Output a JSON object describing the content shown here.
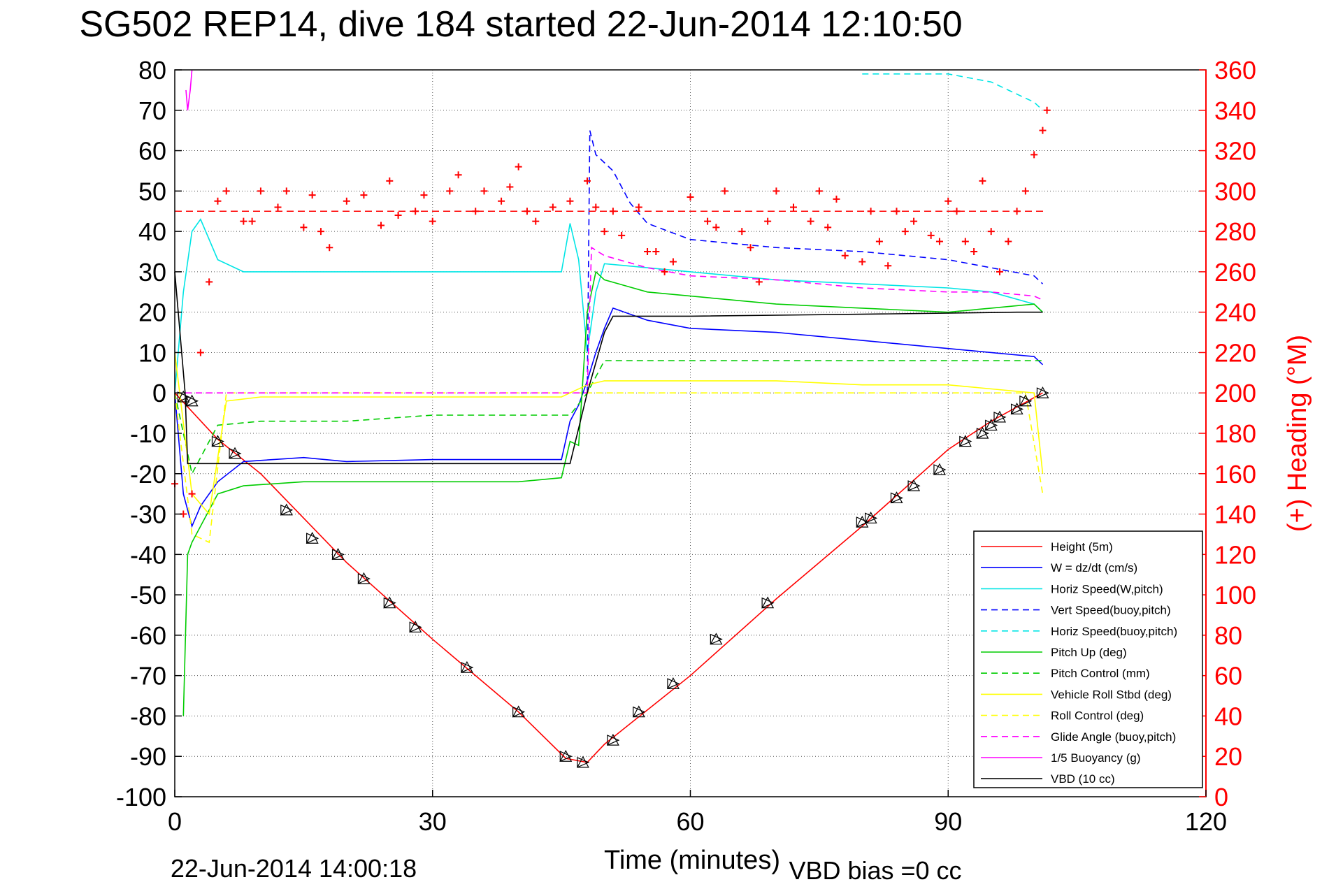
{
  "chart_data": {
    "type": "line",
    "title": "SG502 REP14, dive 184 started 22-Jun-2014 12:10:50",
    "xlabel": "Time (minutes)",
    "ylabel_right": "(+) Heading (°M)",
    "footer_left": "22-Jun-2014 14:00:18",
    "footer_right": "VBD bias =0 cc",
    "xlim": [
      0,
      120
    ],
    "ylim_left": [
      -100,
      80
    ],
    "ylim_right": [
      0,
      360
    ],
    "xticks": [
      0,
      30,
      60,
      90,
      120
    ],
    "yticks_left": [
      80,
      70,
      60,
      50,
      40,
      30,
      20,
      10,
      0,
      -10,
      -20,
      -30,
      -40,
      -50,
      -60,
      -70,
      -80,
      -90,
      -100
    ],
    "yticks_right": [
      360,
      340,
      320,
      300,
      280,
      260,
      240,
      220,
      200,
      180,
      160,
      140,
      120,
      100,
      80,
      60,
      40,
      20,
      0
    ],
    "grid": true,
    "legend_position": "bottom-right",
    "colors": {
      "heading": "#ff0000",
      "right_axis": "#ff0000"
    },
    "series": [
      {
        "name": "Height (5m)",
        "color": "#ff0000",
        "dash": "solid",
        "axis": "left",
        "x": [
          0,
          5,
          10,
          20,
          30,
          40,
          45.5,
          48,
          50,
          60,
          70,
          80,
          90,
          95,
          101
        ],
        "y": [
          0,
          -11.5,
          -20,
          -42,
          -61,
          -79,
          -90.5,
          -91.5,
          -87,
          -70,
          -51,
          -33,
          -14,
          -7,
          0
        ]
      },
      {
        "name": "W = dz/dt (cm/s)",
        "color": "#0000ff",
        "dash": "solid",
        "axis": "left",
        "x": [
          0,
          1,
          2,
          3,
          5,
          8,
          15,
          20,
          30,
          40,
          45,
          46,
          47,
          48,
          49,
          50,
          51,
          55,
          60,
          70,
          80,
          90,
          95,
          100,
          101
        ],
        "y": [
          0,
          -25,
          -33,
          -28,
          -22,
          -17,
          -16,
          -17,
          -16.5,
          -16.5,
          -16.5,
          -7,
          -3,
          3,
          10,
          16,
          21,
          18,
          16,
          15,
          13,
          11,
          10,
          9,
          7
        ]
      },
      {
        "name": "Horiz Speed(W,pitch)",
        "color": "#00e5e5",
        "dash": "solid",
        "axis": "left",
        "x": [
          0,
          1,
          2,
          3,
          5,
          8,
          15,
          20,
          30,
          40,
          45,
          46,
          47,
          48,
          49,
          50,
          55,
          60,
          70,
          80,
          90,
          95,
          100,
          101
        ],
        "y": [
          0,
          25,
          40,
          43,
          33,
          30,
          30,
          30,
          30,
          30,
          30,
          42,
          33,
          10,
          25,
          32,
          31,
          30,
          28,
          27,
          26,
          25,
          22,
          20
        ]
      },
      {
        "name": "Vert Speed(buoy,pitch)",
        "color": "#0000ff",
        "dash": "dashed",
        "axis": "left",
        "x": [
          48,
          48.3,
          49,
          51,
          53,
          55,
          60,
          70,
          80,
          85,
          90,
          95,
          100,
          101
        ],
        "y": [
          0,
          65,
          59,
          55,
          47,
          42,
          38,
          36,
          35,
          34,
          33,
          31,
          29,
          27
        ]
      },
      {
        "name": "Horiz Speed(buoy,pitch)",
        "color": "#00e5e5",
        "dash": "dashed",
        "axis": "left",
        "x": [
          80,
          85,
          90,
          95,
          98,
          100,
          101
        ],
        "y": [
          79,
          79,
          79,
          77,
          74,
          72,
          70
        ]
      },
      {
        "name": "Pitch Up (deg)",
        "color": "#00cc00",
        "dash": "solid",
        "axis": "left",
        "x": [
          1,
          1.5,
          2,
          3,
          5,
          8,
          15,
          20,
          30,
          40,
          45,
          46,
          47,
          48,
          49,
          50,
          55,
          60,
          70,
          80,
          90,
          95,
          100,
          101
        ],
        "y": [
          -80,
          -40,
          -37,
          -33,
          -25,
          -23,
          -22,
          -22,
          -22,
          -22,
          -21,
          -12,
          -13,
          20,
          30,
          28,
          25,
          24,
          22,
          21,
          20,
          21,
          22,
          20
        ]
      },
      {
        "name": "Pitch Control (mm)",
        "color": "#00cc00",
        "dash": "dashed",
        "axis": "left",
        "x": [
          0,
          2,
          5,
          10,
          20,
          30,
          46,
          48,
          50,
          60,
          70,
          80,
          90,
          101
        ],
        "y": [
          0,
          -20,
          -8,
          -7,
          -7,
          -5.5,
          -5.5,
          0,
          8,
          8,
          8,
          8,
          8,
          8
        ]
      },
      {
        "name": "Vehicle Roll Stbd (deg)",
        "color": "#ffff00",
        "dash": "solid",
        "axis": "left",
        "x": [
          0,
          2,
          4,
          6,
          10,
          20,
          30,
          45,
          48,
          50,
          60,
          70,
          80,
          90,
          100,
          101
        ],
        "y": [
          10,
          -25,
          -30,
          -2,
          -1,
          -1,
          -1,
          -1,
          2,
          3,
          3,
          3,
          2,
          2,
          0,
          -20
        ]
      },
      {
        "name": "Roll Control (deg)",
        "color": "#ffff00",
        "dash": "dashed",
        "axis": "left",
        "x": [
          0,
          2,
          4,
          6,
          10,
          20,
          30,
          46,
          48,
          50,
          60,
          70,
          80,
          90,
          99,
          101
        ],
        "y": [
          0,
          -35,
          -37,
          0,
          0,
          0,
          0,
          0,
          0,
          0,
          0,
          0,
          0,
          0,
          0,
          -25
        ]
      },
      {
        "name": "Glide Angle (buoy,pitch)",
        "color": "#ff00ff",
        "dash": "dashed",
        "axis": "left",
        "x": [
          0,
          48,
          48.5,
          50,
          55,
          60,
          70,
          80,
          90,
          95,
          100,
          101
        ],
        "y": [
          0,
          0,
          36,
          34,
          31,
          29,
          28,
          26,
          25,
          25,
          24,
          23
        ]
      },
      {
        "name": "1/5 Buoyancy (g)",
        "color": "#ff00ff",
        "dash": "solid",
        "axis": "left",
        "x": [
          1.3,
          1.5,
          1.8,
          2
        ],
        "y": [
          75,
          70,
          75,
          80
        ]
      },
      {
        "name": "VBD (10 cc)",
        "color": "#000000",
        "dash": "solid",
        "axis": "left",
        "x": [
          0,
          1.2,
          1.5,
          46,
          48,
          50,
          51,
          60,
          80,
          98,
          101
        ],
        "y": [
          30,
          0,
          -17.5,
          -17.5,
          0,
          15,
          19,
          19,
          19.5,
          20,
          20
        ]
      }
    ],
    "heading": {
      "name": "(+) Heading",
      "marker": "+",
      "color": "#ff0000",
      "axis": "right",
      "reference": 290,
      "x": [
        0,
        1,
        2,
        3,
        4,
        5,
        6,
        8,
        9,
        10,
        12,
        13,
        15,
        16,
        17,
        18,
        20,
        22,
        24,
        25,
        26,
        28,
        29,
        30,
        32,
        33,
        35,
        36,
        38,
        39,
        40,
        41,
        42,
        44,
        46,
        48,
        49,
        50,
        51,
        52,
        54,
        55,
        56,
        57,
        58,
        60,
        62,
        63,
        64,
        66,
        67,
        68,
        69,
        70,
        72,
        74,
        75,
        76,
        77,
        78,
        80,
        81,
        82,
        83,
        84,
        85,
        86,
        88,
        89,
        90,
        91,
        92,
        93,
        94,
        95,
        96,
        97,
        98,
        99,
        100,
        101,
        101.5
      ],
      "y": [
        155,
        140,
        150,
        220,
        255,
        295,
        300,
        285,
        285,
        300,
        292,
        300,
        282,
        298,
        280,
        272,
        295,
        298,
        283,
        305,
        288,
        290,
        298,
        285,
        300,
        308,
        290,
        300,
        295,
        302,
        312,
        290,
        285,
        292,
        295,
        305,
        292,
        280,
        290,
        278,
        292,
        270,
        270,
        260,
        265,
        297,
        285,
        282,
        300,
        280,
        272,
        255,
        285,
        300,
        292,
        285,
        300,
        282,
        296,
        268,
        265,
        290,
        275,
        263,
        290,
        280,
        285,
        278,
        275,
        295,
        290,
        275,
        270,
        305,
        280,
        260,
        275,
        290,
        300,
        318,
        330,
        340
      ]
    },
    "dive_markers": {
      "x": [
        1,
        2,
        5,
        7,
        13,
        16,
        19,
        22,
        25,
        28,
        34,
        40,
        45.5,
        47.5,
        51,
        54,
        58,
        63,
        69,
        80,
        81,
        84,
        86,
        89,
        92,
        94,
        95,
        96,
        98,
        99,
        101
      ],
      "y": [
        -1,
        -2,
        -12,
        -15,
        -29,
        -36,
        -40,
        -46,
        -52,
        -58,
        -68,
        -79,
        -90,
        -91.5,
        -86,
        -79,
        -72,
        -61,
        -52,
        -32,
        -31,
        -26,
        -23,
        -19,
        -12,
        -10,
        -8,
        -6,
        -4,
        -2,
        0
      ]
    },
    "legend": [
      "Height (5m)",
      "W = dz/dt (cm/s)",
      "Horiz Speed(W,pitch)",
      "Vert Speed(buoy,pitch)",
      "Horiz Speed(buoy,pitch)",
      "Pitch Up (deg)",
      "Pitch Control (mm)",
      "Vehicle Roll Stbd (deg)",
      "Roll Control (deg)",
      "Glide Angle (buoy,pitch)",
      "1/5 Buoyancy (g)",
      "VBD (10 cc)"
    ]
  }
}
